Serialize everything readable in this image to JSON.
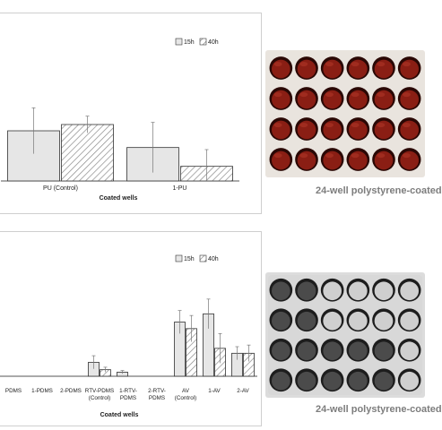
{
  "chart_data": [
    {
      "type": "bar",
      "categories": [
        "PU (Control)",
        "1-PU"
      ],
      "series": [
        {
          "name": "15h",
          "values": [
            0.24,
            0.16
          ],
          "errors": [
            0.11,
            0.12
          ]
        },
        {
          "name": "40h",
          "values": [
            0.27,
            0.07
          ],
          "errors": [
            0.04,
            0.08
          ]
        }
      ],
      "xlabel": "Coated wells",
      "ylim": [
        0,
        0.6
      ],
      "legend": "top-right",
      "grid": false
    },
    {
      "type": "bar",
      "categories": [
        "PDMS",
        "1-PDMS",
        "2-PDMS",
        "RTV-PDMS (Control)",
        "1-RTV-PDMS",
        "2-RTV-PDMS",
        "AV (Control)",
        "1-AV",
        "2-AV"
      ],
      "category_lines": [
        [
          "PDMS"
        ],
        [
          "1-PDMS"
        ],
        [
          "2-PDMS"
        ],
        [
          "RTV-PDMS",
          "(Control)"
        ],
        [
          "1-RTV-",
          "PDMS"
        ],
        [
          "2-RTV-",
          "PDMS"
        ],
        [
          "AV",
          "(Control)"
        ],
        [
          "1-AV"
        ],
        [
          "2-AV"
        ]
      ],
      "series": [
        {
          "name": "15h",
          "values": [
            0,
            0,
            0,
            0.17,
            0.05,
            0,
            0.66,
            0.76,
            0.28
          ],
          "errors": [
            0,
            0,
            0,
            0.08,
            0.02,
            0,
            0.14,
            0.18,
            0.08
          ]
        },
        {
          "name": "40h",
          "values": [
            0,
            0,
            0,
            0.08,
            0,
            0,
            0.58,
            0.34,
            0.28
          ],
          "errors": [
            0,
            0,
            0,
            0.03,
            0,
            0,
            0.16,
            0.18,
            0.1
          ]
        }
      ],
      "xlabel": "Coated wells",
      "ylim": [
        0,
        1.2
      ],
      "legend": "top-right",
      "grid": false
    }
  ],
  "figure": {
    "caption_top": "24-well polystyrene-coated",
    "caption_bottom": "24-well polystyrene-coated",
    "photo_top_wells": {
      "rows": 4,
      "cols": 6,
      "rim": "#2a0805",
      "fill": "#8a1e14",
      "highlight": "#b53a2a",
      "plate": "#e9e4de"
    },
    "photo_bottom_wells": {
      "rows": 4,
      "cols": 6,
      "rim": "#1d1d1d",
      "fill": "#4b4b4b",
      "light_fill": "#cfcfcf",
      "plate": "#d8d8d8"
    }
  }
}
